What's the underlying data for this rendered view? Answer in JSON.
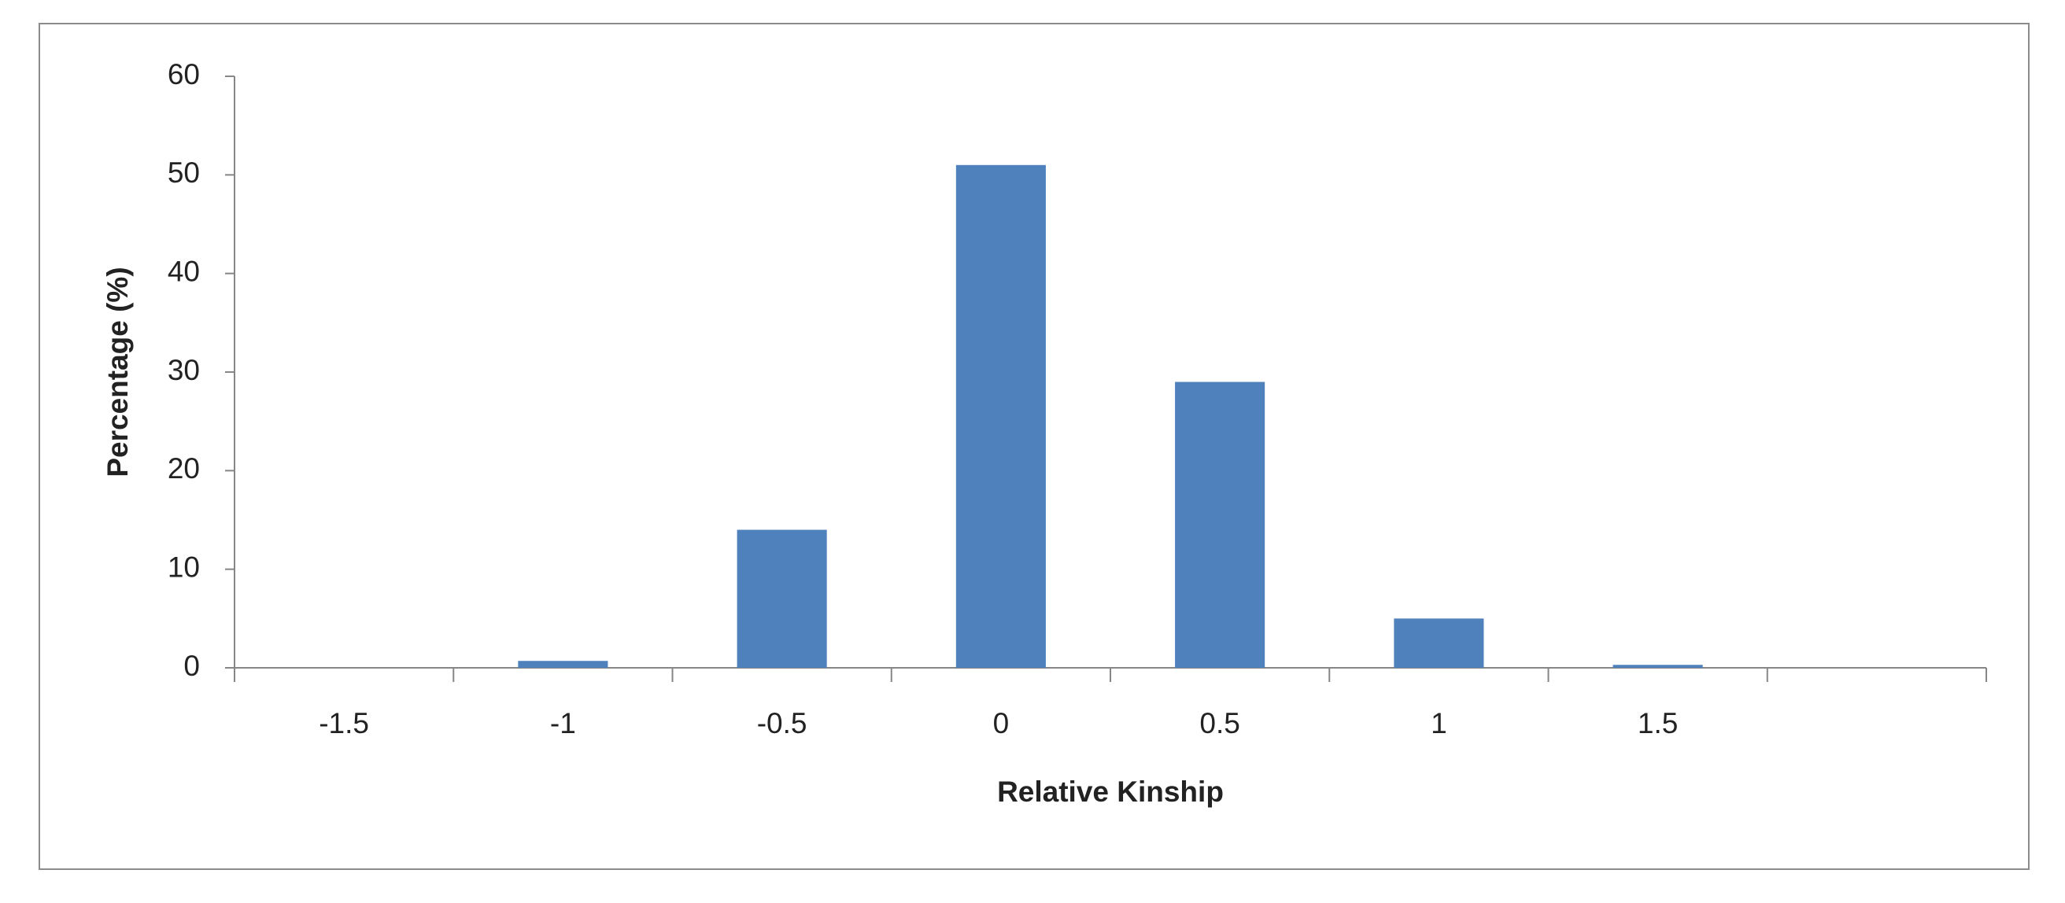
{
  "chart_data": {
    "type": "bar",
    "x_label": "Relative Kinship",
    "y_label": "Percentage (%)",
    "categories": [
      "-1.5",
      "-1",
      "-0.5",
      "0",
      "0.5",
      "1",
      "1.5",
      null
    ],
    "values": [
      0,
      0.7,
      14,
      51,
      29,
      5,
      0.3,
      0
    ],
    "color": "#4f81bd",
    "ylim": [
      0,
      60
    ],
    "yticks": [
      0,
      10,
      20,
      30,
      40,
      50,
      60
    ],
    "grid": false
  }
}
